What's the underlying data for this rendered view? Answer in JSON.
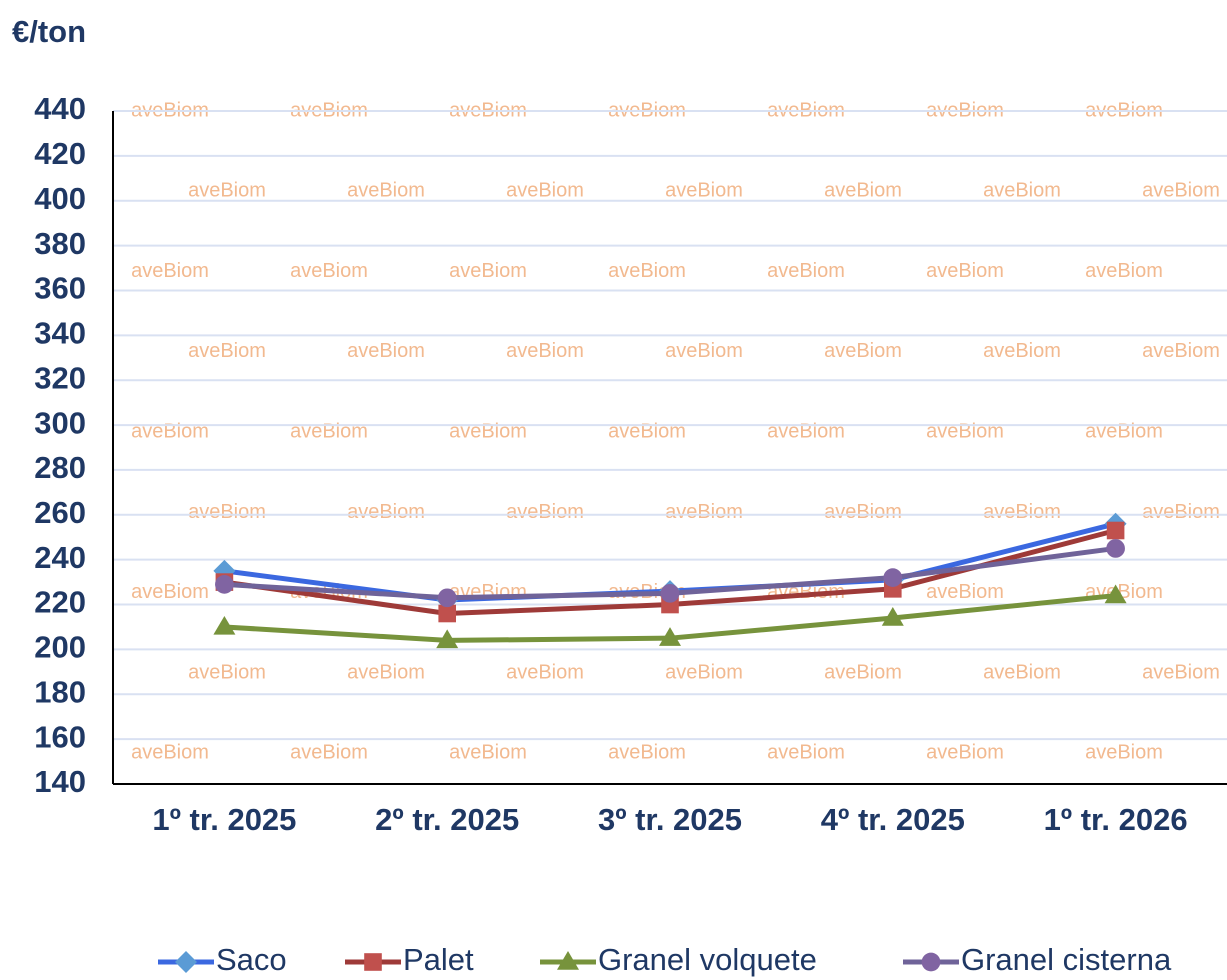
{
  "chart_data": {
    "type": "line",
    "y_label": "€/ton",
    "watermark": "aveBiom",
    "categories": [
      "1º tr. 2025",
      "2º tr. 2025",
      "3º tr. 2025",
      "4º tr. 2025",
      "1º tr. 2026"
    ],
    "series": [
      {
        "name": "Saco",
        "color": "#3b68e0",
        "marker_color": "#5b9bd5",
        "marker": "diamond",
        "values": [
          235,
          222,
          226,
          231,
          256
        ]
      },
      {
        "name": "Palet",
        "color": "#9e3a38",
        "marker_color": "#c0504d",
        "marker": "square",
        "values": [
          230,
          216,
          220,
          227,
          253
        ]
      },
      {
        "name": "Granel volquete",
        "color": "#77933c",
        "marker_color": "#77933c",
        "marker": "triangle",
        "values": [
          210,
          204,
          205,
          214,
          224
        ]
      },
      {
        "name": "Granel cisterna",
        "color": "#6f6399",
        "marker_color": "#8064a2",
        "marker": "circle",
        "values": [
          229,
          223,
          225,
          232,
          245
        ]
      }
    ],
    "ylim": [
      140,
      440
    ],
    "yticks": [
      140,
      160,
      180,
      200,
      220,
      240,
      260,
      280,
      300,
      320,
      340,
      360,
      380,
      400,
      420,
      440
    ],
    "grid": true,
    "legend": "bottom"
  }
}
